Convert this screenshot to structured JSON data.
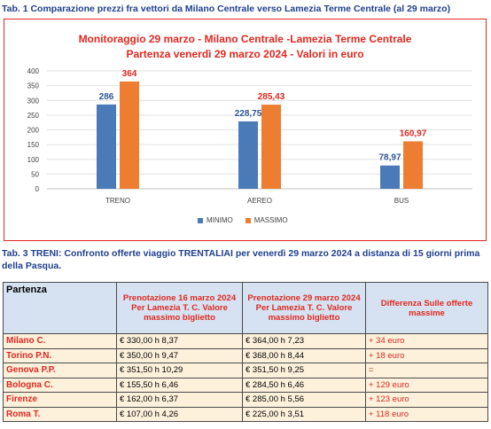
{
  "heading1": "Tab. 1 Comparazione prezzi fra vettori da Milano Centrale verso Lamezia Terme Centrale (al 29 marzo)",
  "heading3": "Tab. 3 TRENI: Confronto offerte viaggio TRENTALIAI per venerdì 29 marzo 2024  a distanza di 15 giorni prima della Pasqua.",
  "colors": {
    "accent": "#e0281f",
    "minimo": "#4a7ab8",
    "massimo": "#ed7d31",
    "heading": "#1f3f8f",
    "table_header_bg": "#d6e2f1",
    "table_row_bg": "#fdf1dc"
  },
  "chart_data": {
    "type": "bar",
    "title_line1": "Monitoraggio 29 marzo - Milano Centrale -Lamezia Terme Centrale",
    "title_line2": "Partenza venerdì 29 marzo 2024 - Valori in euro",
    "categories": [
      "TRENO",
      "AEREO",
      "BUS"
    ],
    "series": [
      {
        "name": "MINIMO",
        "values": [
          286,
          228.75,
          78.97
        ],
        "labels": [
          "286",
          "228,75",
          "78,97"
        ],
        "color": "#4a7ab8"
      },
      {
        "name": "MASSIMO",
        "values": [
          364,
          285.43,
          160.97
        ],
        "labels": [
          "364",
          "285,43",
          "160,97"
        ],
        "color": "#ed7d31"
      }
    ],
    "ylim": [
      0,
      400
    ],
    "yticks": [
      0,
      50,
      100,
      150,
      200,
      250,
      300,
      350,
      400
    ],
    "grid": true,
    "legend": "bottom"
  },
  "table": {
    "headers": {
      "partenza": "Partenza",
      "col16": "Prenotazione 16 marzo 2024 Per Lamezia T. C. Valore massimo biglietto",
      "col29": "Prenotazione 29 marzo 2024 Per Lamezia T. C. Valore massimo biglietto",
      "diff": "Differenza Sulle offerte massime"
    },
    "rows": [
      {
        "city": "Milano C.",
        "p16": "€ 330,00  h 8,37",
        "p29": "€ 364,00  h 7,23",
        "diff": "+ 34 euro"
      },
      {
        "city": "Torino P.N.",
        "p16": "€ 350,00  h 9,47",
        "p29": "€ 368,00  h 8,44",
        "diff": "+ 18 euro"
      },
      {
        "city": "Genova P.P.",
        "p16": "€ 351,50  h 10,29",
        "p29": "€ 351,50  h 9,25",
        "diff": "="
      },
      {
        "city": "Bologna C.",
        "p16": "€ 155,50  h 6,46",
        "p29": "€ 284,50  h 6,46",
        "diff": "+ 129 euro"
      },
      {
        "city": "Firenze",
        "p16": "€ 162,00  h 6,37",
        "p29": "€ 285,00  h 5,56",
        "diff": "+ 123 euro"
      },
      {
        "city": "Roma T.",
        "p16": "€ 107,00  h 4,26",
        "p29": "€ 225,00  h 3,51",
        "diff": "+ 118 euro"
      }
    ]
  }
}
